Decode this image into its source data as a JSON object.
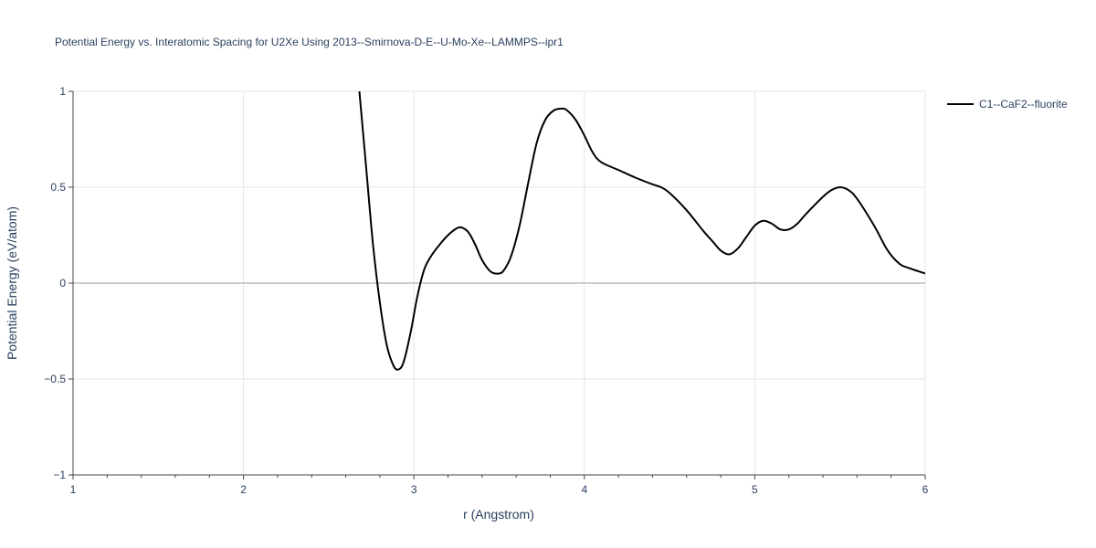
{
  "chart_data": {
    "type": "line",
    "title": "Potential Energy vs. Interatomic Spacing for U2Xe Using 2013--Smirnova-D-E--U-Mo-Xe--LAMMPS--ipr1",
    "xlabel": "r (Angstrom)",
    "ylabel": "Potential Energy (eV/atom)",
    "xlim": [
      1,
      6
    ],
    "ylim": [
      -1,
      1
    ],
    "x_ticks": [
      1,
      2,
      3,
      4,
      5,
      6
    ],
    "x_tick_labels": [
      "1",
      "2",
      "3",
      "4",
      "5",
      "6"
    ],
    "y_ticks": [
      -1,
      -0.5,
      0,
      0.5,
      1
    ],
    "y_tick_labels": [
      "−1",
      "−0.5",
      "0",
      "0.5",
      "1"
    ],
    "grid": true,
    "legend_position": "top-right",
    "series": [
      {
        "name": "C1--CaF2--fluorite",
        "color": "#000000",
        "x": [
          2.68,
          2.72,
          2.76,
          2.8,
          2.84,
          2.88,
          2.91,
          2.94,
          2.98,
          3.02,
          3.06,
          3.1,
          3.15,
          3.2,
          3.25,
          3.28,
          3.32,
          3.36,
          3.4,
          3.45,
          3.5,
          3.53,
          3.57,
          3.62,
          3.67,
          3.72,
          3.77,
          3.82,
          3.87,
          3.9,
          3.95,
          4.0,
          4.05,
          4.1,
          4.2,
          4.3,
          4.4,
          4.45,
          4.5,
          4.6,
          4.7,
          4.76,
          4.8,
          4.85,
          4.9,
          4.95,
          5.0,
          5.05,
          5.1,
          5.15,
          5.2,
          5.25,
          5.3,
          5.4,
          5.45,
          5.5,
          5.55,
          5.6,
          5.7,
          5.78,
          5.85,
          5.9,
          6.0
        ],
        "y": [
          1.0,
          0.6,
          0.2,
          -0.1,
          -0.32,
          -0.43,
          -0.45,
          -0.41,
          -0.26,
          -0.07,
          0.07,
          0.14,
          0.2,
          0.25,
          0.285,
          0.29,
          0.265,
          0.2,
          0.12,
          0.06,
          0.05,
          0.07,
          0.14,
          0.3,
          0.52,
          0.73,
          0.85,
          0.9,
          0.91,
          0.9,
          0.85,
          0.77,
          0.68,
          0.63,
          0.59,
          0.55,
          0.515,
          0.5,
          0.47,
          0.38,
          0.27,
          0.21,
          0.17,
          0.15,
          0.18,
          0.24,
          0.3,
          0.325,
          0.31,
          0.28,
          0.28,
          0.31,
          0.36,
          0.45,
          0.485,
          0.5,
          0.485,
          0.44,
          0.3,
          0.17,
          0.1,
          0.08,
          0.05
        ]
      }
    ]
  }
}
